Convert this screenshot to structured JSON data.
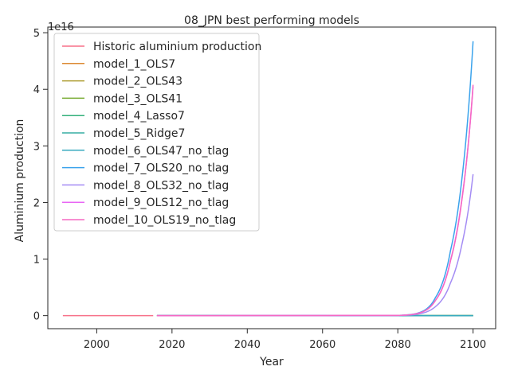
{
  "chart_data": {
    "type": "line",
    "title": "08_JPN best performing models",
    "xlabel": "Year",
    "ylabel": "Aluminium production",
    "y_offset_label": "1e16",
    "xlim": [
      1987,
      2106
    ],
    "ylim": [
      -0.23,
      5.1
    ],
    "y_scale": 1e+16,
    "x_ticks": [
      2000,
      2020,
      2040,
      2060,
      2080,
      2100
    ],
    "y_ticks": [
      0,
      1,
      2,
      3,
      4,
      5
    ],
    "grid": false,
    "legend_position": "top-left",
    "series": [
      {
        "name": "Historic aluminium production",
        "color": "#f77189",
        "x": [
          1991,
          2015
        ],
        "y": [
          0,
          0
        ]
      },
      {
        "name": "model_1_OLS7",
        "color": "#dc8932",
        "x": [
          2016,
          2100
        ],
        "y": [
          0,
          0
        ]
      },
      {
        "name": "model_2_OLS43",
        "color": "#ae9d31",
        "x": [
          2016,
          2100
        ],
        "y": [
          0,
          0
        ]
      },
      {
        "name": "model_3_OLS41",
        "color": "#77ab31",
        "x": [
          2016,
          2100
        ],
        "y": [
          0,
          0
        ]
      },
      {
        "name": "model_4_Lasso7",
        "color": "#33b07a",
        "x": [
          2016,
          2100
        ],
        "y": [
          0,
          0
        ]
      },
      {
        "name": "model_5_Ridge7",
        "color": "#36ada4",
        "x": [
          2016,
          2100
        ],
        "y": [
          0,
          0
        ]
      },
      {
        "name": "model_6_OLS47_no_tlag",
        "color": "#38aabf",
        "x": [
          2016,
          2100
        ],
        "y": [
          0,
          0
        ]
      },
      {
        "name": "model_7_OLS20_no_tlag",
        "color": "#3ba3ec",
        "x": [
          2016,
          2080,
          2085,
          2090,
          2094,
          2097,
          2100
        ],
        "y": [
          0,
          0.005,
          0.04,
          0.32,
          1.15,
          2.4,
          4.85
        ]
      },
      {
        "name": "model_8_OLS32_no_tlag",
        "color": "#a48cf4",
        "x": [
          2016,
          2080,
          2085,
          2090,
          2094,
          2097,
          2100
        ],
        "y": [
          0,
          0.003,
          0.025,
          0.16,
          0.58,
          1.25,
          2.5
        ]
      },
      {
        "name": "model_9_OLS12_no_tlag",
        "color": "#e866f4",
        "x": [
          2016,
          2080,
          2085,
          2090,
          2094,
          2097,
          2100
        ],
        "y": [
          0,
          0.004,
          0.035,
          0.27,
          0.98,
          2.05,
          4.05
        ]
      },
      {
        "name": "model_10_OLS19_no_tlag",
        "color": "#f668c2",
        "x": [
          2016,
          2080,
          2085,
          2090,
          2094,
          2097,
          2100
        ],
        "y": [
          0,
          0.004,
          0.035,
          0.27,
          0.97,
          2.03,
          4.08
        ]
      }
    ]
  }
}
